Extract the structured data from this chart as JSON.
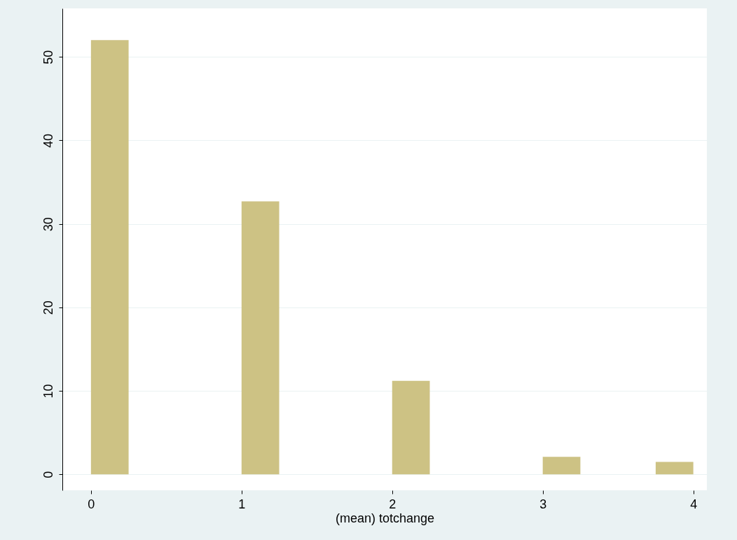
{
  "chart_data": {
    "type": "histogram",
    "xlabel": "(mean) totchange",
    "bins": [
      0,
      0.25,
      0.5,
      0.75,
      1,
      1.25,
      1.5,
      1.75,
      2,
      2.25,
      2.5,
      2.75,
      3,
      3.25,
      3.5,
      3.75,
      4
    ],
    "values": [
      52,
      0,
      0,
      0,
      32.7,
      0,
      0,
      0,
      11.2,
      0,
      0,
      0,
      2.1,
      0,
      0,
      1.5
    ],
    "color": "#cdc284",
    "xlim": [
      -0.19,
      4.09
    ],
    "xticks": [
      0,
      1,
      2,
      3,
      4
    ],
    "ylim": [
      -1.9,
      55.8
    ],
    "yticks": [
      0,
      10,
      20,
      30,
      40,
      50
    ],
    "grid": "y"
  }
}
